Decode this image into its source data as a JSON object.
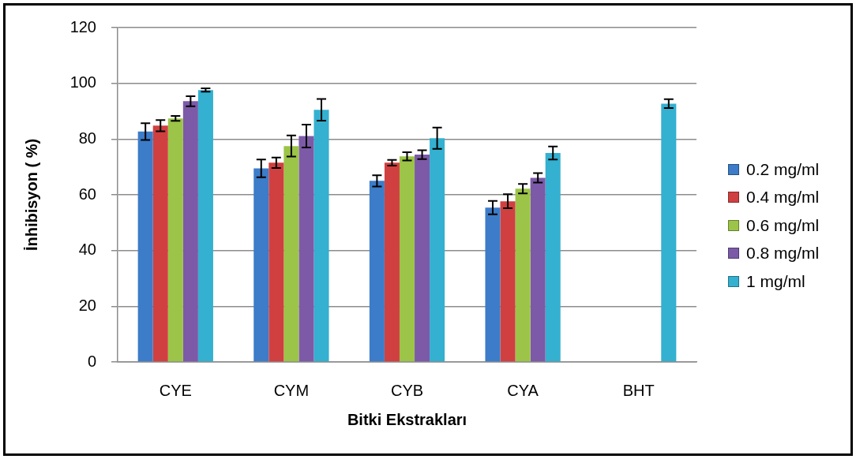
{
  "chart_data": {
    "type": "bar",
    "xlabel": "Bitki Ekstrakları",
    "ylabel": "İnhibisyon ( %)",
    "categories": [
      "CYE",
      "CYM",
      "CYB",
      "CYA",
      "BHT"
    ],
    "series": [
      {
        "name": "0.2 mg/ml",
        "color": "#3c7cc8",
        "values": [
          82.7,
          69.5,
          65.0,
          55.4,
          null
        ],
        "errors": [
          3.0,
          3.2,
          2.0,
          2.4,
          null
        ]
      },
      {
        "name": "0.4 mg/ml",
        "color": "#d04040",
        "values": [
          84.8,
          71.5,
          71.5,
          57.7,
          null
        ],
        "errors": [
          2.0,
          1.9,
          1.0,
          2.5,
          null
        ]
      },
      {
        "name": "0.6 mg/ml",
        "color": "#9cc448",
        "values": [
          87.4,
          77.5,
          73.8,
          62.2,
          null
        ],
        "errors": [
          0.9,
          3.8,
          1.5,
          1.7,
          null
        ]
      },
      {
        "name": "0.8 mg/ml",
        "color": "#7c5aa8",
        "values": [
          93.6,
          81.1,
          74.4,
          66.1,
          null
        ],
        "errors": [
          1.8,
          4.1,
          1.6,
          1.7,
          null
        ]
      },
      {
        "name": "1 mg/ml",
        "color": "#34b0d0",
        "values": [
          97.6,
          90.5,
          80.3,
          75.0,
          92.7
        ],
        "errors": [
          0.6,
          3.9,
          3.8,
          2.3,
          1.6
        ]
      }
    ],
    "ylim": [
      0,
      120
    ],
    "yticks": [
      0,
      20,
      40,
      60,
      80,
      100,
      120
    ],
    "grid": "y",
    "legend": "right"
  }
}
